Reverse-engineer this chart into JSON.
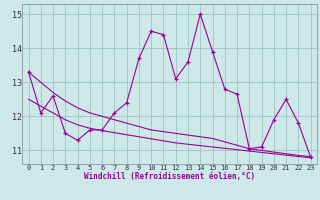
{
  "xlabel": "Windchill (Refroidissement éolien,°C)",
  "x": [
    0,
    1,
    2,
    3,
    4,
    5,
    6,
    7,
    8,
    9,
    10,
    11,
    12,
    13,
    14,
    15,
    16,
    17,
    18,
    19,
    20,
    21,
    22,
    23
  ],
  "y_main": [
    13.3,
    12.1,
    12.6,
    11.5,
    11.3,
    11.6,
    11.6,
    12.1,
    12.4,
    13.7,
    14.5,
    14.4,
    13.1,
    13.6,
    15.0,
    13.9,
    12.8,
    12.65,
    11.05,
    11.1,
    11.9,
    12.5,
    11.8,
    10.8
  ],
  "y_trend1": [
    13.3,
    13.0,
    12.7,
    12.45,
    12.25,
    12.1,
    12.0,
    11.9,
    11.8,
    11.7,
    11.6,
    11.55,
    11.5,
    11.45,
    11.4,
    11.35,
    11.25,
    11.15,
    11.05,
    11.0,
    10.95,
    10.9,
    10.85,
    10.82
  ],
  "y_trend2": [
    12.5,
    12.3,
    12.1,
    11.9,
    11.75,
    11.65,
    11.58,
    11.52,
    11.46,
    11.4,
    11.34,
    11.28,
    11.22,
    11.18,
    11.14,
    11.1,
    11.06,
    11.02,
    10.98,
    10.94,
    10.9,
    10.86,
    10.82,
    10.78
  ],
  "line_color": "#990099",
  "bg_color": "#cce8e8",
  "grid_color": "#99bbbb",
  "ylim": [
    10.6,
    15.3
  ],
  "yticks": [
    11,
    12,
    13,
    14,
    15
  ],
  "xticks": [
    0,
    1,
    2,
    3,
    4,
    5,
    6,
    7,
    8,
    9,
    10,
    11,
    12,
    13,
    14,
    15,
    16,
    17,
    18,
    19,
    20,
    21,
    22,
    23
  ]
}
